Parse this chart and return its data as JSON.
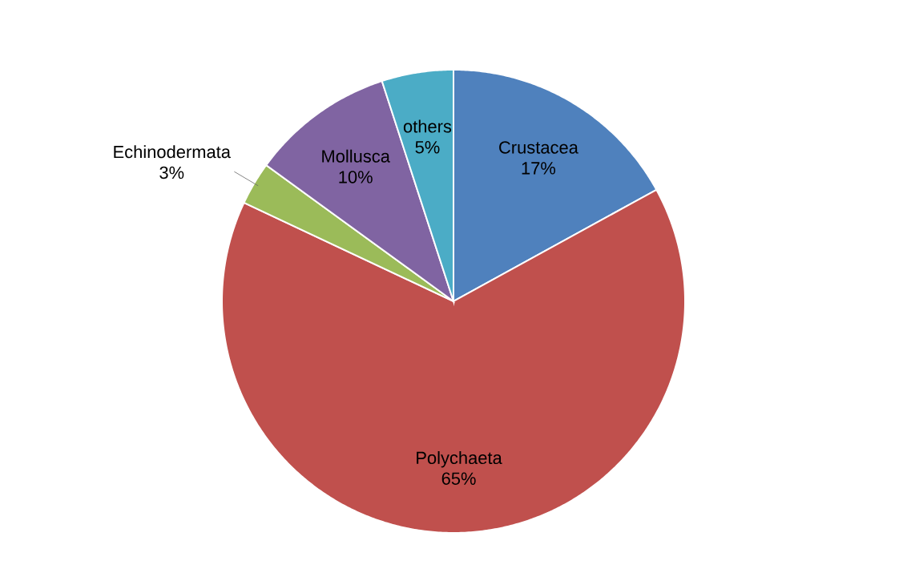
{
  "chart_data": {
    "type": "pie",
    "categories": [
      "Crustacea",
      "Polychaeta",
      "Echinodermata",
      "Mollusca",
      "others"
    ],
    "values": [
      17,
      65,
      3,
      10,
      5
    ],
    "colors": [
      "#4f81bd",
      "#c0504d",
      "#9bbb59",
      "#8064a2",
      "#4bacc6"
    ],
    "value_labels": [
      "17%",
      "65%",
      "3%",
      "10%",
      "5%"
    ]
  }
}
